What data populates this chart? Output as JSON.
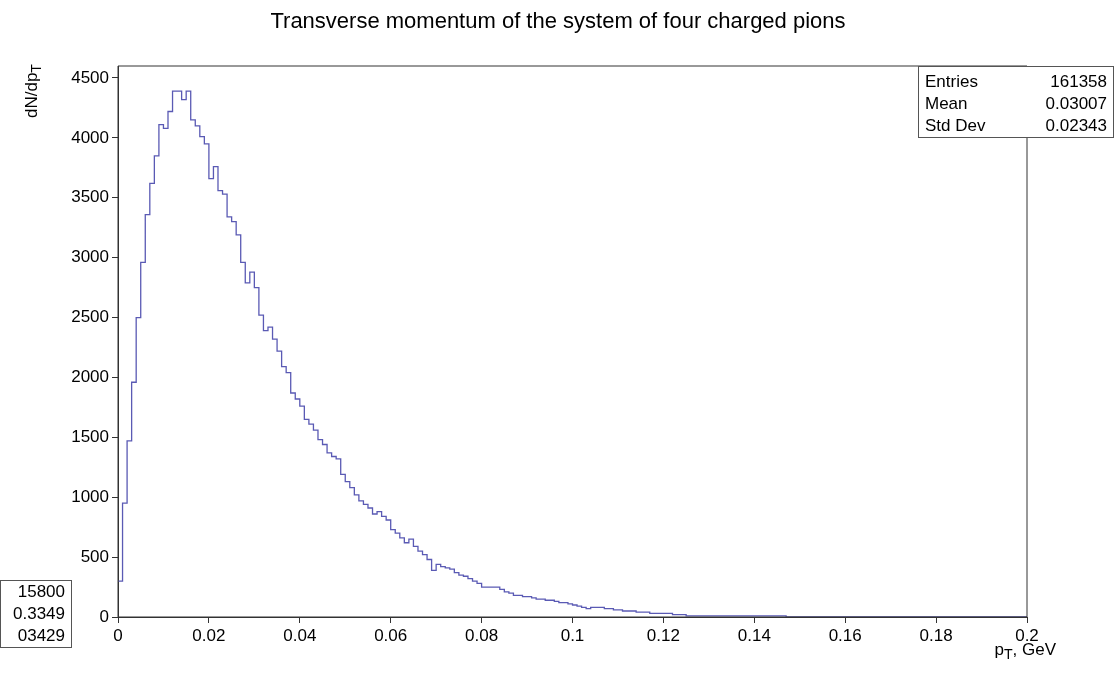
{
  "chart_data": {
    "type": "histogram",
    "title": "Transverse momentum of the system of four charged pions",
    "xlabel": "p$_{T}$, GeV",
    "ylabel": "dN/dp$_{T}$",
    "color": "#5a5ab4",
    "bins": [
      0,
      0.001,
      0.002,
      0.003,
      0.004,
      0.005,
      0.006,
      0.007,
      0.008,
      0.009,
      0.01,
      0.011,
      0.012,
      0.013,
      0.014,
      0.015,
      0.016,
      0.017,
      0.018,
      0.019,
      0.02,
      0.021,
      0.022,
      0.023,
      0.024,
      0.025,
      0.026,
      0.027,
      0.028,
      0.029,
      0.03,
      0.031,
      0.032,
      0.033,
      0.034,
      0.035,
      0.036,
      0.037,
      0.038,
      0.039,
      0.04,
      0.041,
      0.042,
      0.043,
      0.044,
      0.045,
      0.046,
      0.047,
      0.048,
      0.049,
      0.05,
      0.051,
      0.052,
      0.053,
      0.054,
      0.055,
      0.056,
      0.057,
      0.058,
      0.059,
      0.06,
      0.061,
      0.062,
      0.063,
      0.064,
      0.065,
      0.066,
      0.067,
      0.068,
      0.069,
      0.07,
      0.071,
      0.072,
      0.073,
      0.074,
      0.075,
      0.076,
      0.077,
      0.078,
      0.079,
      0.08,
      0.081,
      0.082,
      0.083,
      0.084,
      0.085,
      0.086,
      0.087,
      0.088,
      0.089,
      0.09,
      0.091,
      0.092,
      0.093,
      0.094,
      0.095,
      0.096,
      0.097,
      0.098,
      0.099,
      0.1,
      0.101,
      0.102,
      0.103,
      0.104,
      0.105,
      0.106,
      0.107,
      0.108,
      0.109,
      0.11,
      0.111,
      0.112,
      0.113,
      0.114,
      0.115,
      0.116,
      0.117,
      0.118,
      0.119,
      0.12,
      0.121,
      0.122,
      0.123,
      0.124,
      0.125,
      0.126,
      0.127,
      0.128,
      0.129,
      0.13,
      0.131,
      0.132,
      0.133,
      0.134,
      0.135,
      0.136,
      0.137,
      0.138,
      0.139,
      0.14,
      0.141,
      0.142,
      0.143,
      0.144,
      0.145,
      0.146,
      0.147,
      0.148,
      0.149,
      0.15,
      0.151,
      0.152,
      0.153,
      0.154,
      0.155,
      0.156,
      0.157,
      0.158,
      0.159,
      0.16,
      0.161,
      0.162,
      0.163,
      0.164,
      0.165,
      0.166,
      0.167,
      0.168,
      0.169,
      0.17,
      0.171,
      0.172,
      0.173,
      0.174,
      0.175,
      0.176,
      0.177,
      0.178,
      0.179,
      0.18,
      0.181,
      0.182,
      0.183,
      0.184,
      0.185,
      0.186,
      0.187,
      0.188,
      0.189,
      0.19,
      0.191,
      0.192,
      0.193,
      0.194,
      0.195,
      0.196,
      0.197,
      0.198,
      0.199,
      0.2
    ],
    "values": [
      300,
      950,
      1470,
      1960,
      2500,
      2960,
      3360,
      3620,
      3850,
      4110,
      4080,
      4220,
      4390,
      4390,
      4320,
      4390,
      4150,
      4100,
      4010,
      3950,
      3660,
      3760,
      3560,
      3530,
      3340,
      3300,
      3190,
      2960,
      2790,
      2880,
      2750,
      2520,
      2390,
      2420,
      2320,
      2220,
      2090,
      2040,
      1870,
      1820,
      1760,
      1650,
      1610,
      1560,
      1480,
      1440,
      1370,
      1340,
      1320,
      1190,
      1130,
      1080,
      1020,
      970,
      940,
      910,
      860,
      880,
      840,
      810,
      730,
      700,
      660,
      620,
      650,
      590,
      550,
      520,
      480,
      390,
      440,
      420,
      410,
      400,
      370,
      350,
      340,
      320,
      300,
      280,
      250,
      250,
      250,
      250,
      230,
      210,
      200,
      180,
      180,
      170,
      170,
      160,
      150,
      150,
      140,
      140,
      130,
      120,
      120,
      110,
      100,
      90,
      80,
      70,
      80,
      80,
      80,
      70,
      70,
      60,
      60,
      50,
      50,
      50,
      40,
      40,
      40,
      30,
      30,
      30,
      30,
      30,
      20,
      20,
      20,
      10,
      10,
      10,
      10,
      10,
      10,
      10,
      10,
      10,
      10,
      10,
      10,
      10,
      10,
      10,
      10,
      10,
      10,
      10,
      10,
      10,
      10,
      0,
      0,
      0,
      0,
      0,
      0,
      0,
      0,
      0,
      0,
      0,
      0,
      0,
      0,
      0,
      0,
      0,
      0,
      0,
      0,
      0,
      0,
      0,
      0,
      0,
      0,
      0,
      0,
      0,
      0,
      0,
      0,
      0,
      0,
      0,
      0,
      0,
      0,
      0,
      0,
      0,
      0,
      0,
      0,
      0,
      0,
      0,
      0,
      0,
      0,
      0,
      0,
      0
    ],
    "xlim": [
      0,
      0.2
    ],
    "xticks": [
      0,
      0.02,
      0.04,
      0.06,
      0.08,
      0.1,
      0.12,
      0.14,
      0.16,
      0.18,
      0.2
    ],
    "ylim": [
      0,
      4600
    ],
    "yticks": [
      0,
      500,
      1000,
      1500,
      2000,
      2500,
      3000,
      3500,
      4000,
      4500
    ],
    "annotations": [
      "Entries",
      "161358",
      "Mean",
      "0.03007",
      "Std Dev",
      "0.02343",
      "15800",
      "0.3349",
      "03429"
    ]
  }
}
